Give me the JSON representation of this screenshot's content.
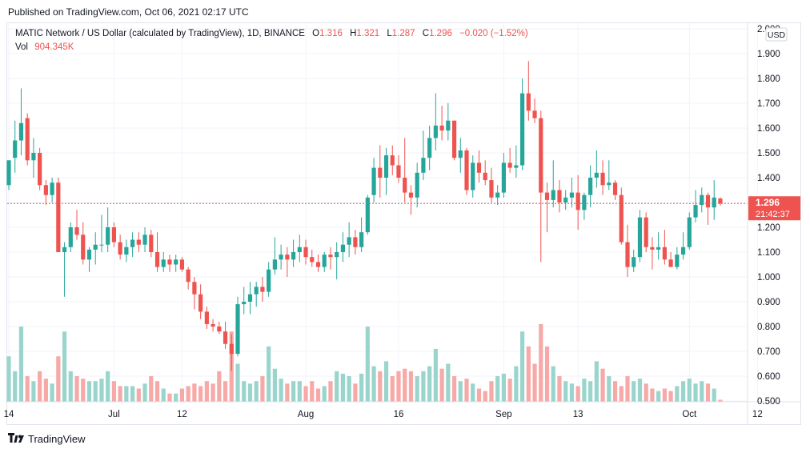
{
  "published": "Published on TradingView.com, Oct 06, 2021 02:17 UTC",
  "footer": {
    "logo_icon": "tradingview-logo-icon",
    "brand": "TradingView"
  },
  "colors": {
    "up": "#26a69a",
    "down": "#ef5350",
    "up_vol": "#9ad5cd",
    "down_vol": "#f7a9a7",
    "grid": "#f0f3fa",
    "axis_text": "#131722",
    "price_line": "#ef5350"
  },
  "chart_data": {
    "type": "candlestick",
    "legend": {
      "symbol": "MATIC Network / US Dollar (calculated by TradingView), 1D, BINANCE",
      "o_label": "O",
      "o_value": "1.316",
      "h_label": "H",
      "h_value": "1.321",
      "l_label": "L",
      "l_value": "1.287",
      "c_label": "C",
      "c_value": "1.296",
      "change": "−0.020 (−1.52%)",
      "vol_label": "Vol",
      "vol_value": "904.345K"
    },
    "currency": "USD",
    "last_price": "1.296",
    "countdown": "21:42:37",
    "ylim": [
      0.5,
      2.0
    ],
    "y_ticks": [
      "0.500",
      "0.600",
      "0.700",
      "0.800",
      "0.900",
      "1.000",
      "1.100",
      "1.200",
      "1.300",
      "1.400",
      "1.500",
      "1.600",
      "1.700",
      "1.800",
      "1.900",
      "2.000"
    ],
    "x_ticks": [
      {
        "label": "14",
        "index": 0
      },
      {
        "label": "Jul",
        "index": 17
      },
      {
        "label": "12",
        "index": 28
      },
      {
        "label": "Aug",
        "index": 48
      },
      {
        "label": "16",
        "index": 63
      },
      {
        "label": "Sep",
        "index": 80
      },
      {
        "label": "13",
        "index": 92
      },
      {
        "label": "Oct",
        "index": 110
      },
      {
        "label": "12",
        "index": 121
      }
    ],
    "candles": [
      {
        "o": 1.37,
        "h": 1.47,
        "l": 1.35,
        "c": 1.47,
        "v": 0.68
      },
      {
        "o": 1.48,
        "h": 1.63,
        "l": 1.42,
        "c": 1.55,
        "v": 0.62
      },
      {
        "o": 1.55,
        "h": 1.76,
        "l": 1.49,
        "c": 1.62,
        "v": 0.8
      },
      {
        "o": 1.64,
        "h": 1.66,
        "l": 1.45,
        "c": 1.47,
        "v": 0.6
      },
      {
        "o": 1.47,
        "h": 1.56,
        "l": 1.4,
        "c": 1.5,
        "v": 0.58
      },
      {
        "o": 1.5,
        "h": 1.52,
        "l": 1.35,
        "c": 1.37,
        "v": 0.62
      },
      {
        "o": 1.37,
        "h": 1.39,
        "l": 1.29,
        "c": 1.33,
        "v": 0.59
      },
      {
        "o": 1.33,
        "h": 1.4,
        "l": 1.3,
        "c": 1.38,
        "v": 0.57
      },
      {
        "o": 1.38,
        "h": 1.4,
        "l": 1.11,
        "c": 1.1,
        "v": 0.68
      },
      {
        "o": 1.1,
        "h": 1.14,
        "l": 0.92,
        "c": 1.12,
        "v": 0.78
      },
      {
        "o": 1.12,
        "h": 1.22,
        "l": 1.1,
        "c": 1.2,
        "v": 0.62
      },
      {
        "o": 1.2,
        "h": 1.27,
        "l": 1.15,
        "c": 1.17,
        "v": 0.6
      },
      {
        "o": 1.17,
        "h": 1.22,
        "l": 1.05,
        "c": 1.07,
        "v": 0.59
      },
      {
        "o": 1.07,
        "h": 1.12,
        "l": 1.02,
        "c": 1.11,
        "v": 0.58
      },
      {
        "o": 1.11,
        "h": 1.18,
        "l": 1.05,
        "c": 1.13,
        "v": 0.58
      },
      {
        "o": 1.13,
        "h": 1.25,
        "l": 1.1,
        "c": 1.13,
        "v": 0.59
      },
      {
        "o": 1.13,
        "h": 1.28,
        "l": 1.1,
        "c": 1.2,
        "v": 0.62
      },
      {
        "o": 1.2,
        "h": 1.22,
        "l": 1.12,
        "c": 1.14,
        "v": 0.58
      },
      {
        "o": 1.14,
        "h": 1.17,
        "l": 1.07,
        "c": 1.09,
        "v": 0.56
      },
      {
        "o": 1.09,
        "h": 1.15,
        "l": 1.06,
        "c": 1.12,
        "v": 0.56
      },
      {
        "o": 1.12,
        "h": 1.18,
        "l": 1.08,
        "c": 1.15,
        "v": 0.56
      },
      {
        "o": 1.15,
        "h": 1.18,
        "l": 1.1,
        "c": 1.13,
        "v": 0.55
      },
      {
        "o": 1.13,
        "h": 1.2,
        "l": 1.1,
        "c": 1.17,
        "v": 0.57
      },
      {
        "o": 1.17,
        "h": 1.19,
        "l": 1.08,
        "c": 1.1,
        "v": 0.6
      },
      {
        "o": 1.1,
        "h": 1.18,
        "l": 1.02,
        "c": 1.04,
        "v": 0.58
      },
      {
        "o": 1.04,
        "h": 1.1,
        "l": 1.02,
        "c": 1.07,
        "v": 0.55
      },
      {
        "o": 1.07,
        "h": 1.09,
        "l": 1.02,
        "c": 1.05,
        "v": 0.53
      },
      {
        "o": 1.05,
        "h": 1.09,
        "l": 1.02,
        "c": 1.07,
        "v": 0.53
      },
      {
        "o": 1.07,
        "h": 1.08,
        "l": 1.02,
        "c": 1.03,
        "v": 0.55
      },
      {
        "o": 1.03,
        "h": 1.04,
        "l": 0.95,
        "c": 0.98,
        "v": 0.56
      },
      {
        "o": 0.98,
        "h": 1.0,
        "l": 0.87,
        "c": 0.93,
        "v": 0.57
      },
      {
        "o": 0.93,
        "h": 0.97,
        "l": 0.83,
        "c": 0.86,
        "v": 0.56
      },
      {
        "o": 0.86,
        "h": 0.88,
        "l": 0.79,
        "c": 0.81,
        "v": 0.58
      },
      {
        "o": 0.81,
        "h": 0.83,
        "l": 0.78,
        "c": 0.8,
        "v": 0.57
      },
      {
        "o": 0.8,
        "h": 0.82,
        "l": 0.77,
        "c": 0.78,
        "v": 0.62
      },
      {
        "o": 0.78,
        "h": 0.82,
        "l": 0.71,
        "c": 0.73,
        "v": 0.58
      },
      {
        "o": 0.73,
        "h": 0.77,
        "l": 0.62,
        "c": 0.69,
        "v": 0.78
      },
      {
        "o": 0.69,
        "h": 0.92,
        "l": 0.68,
        "c": 0.89,
        "v": 0.65
      },
      {
        "o": 0.89,
        "h": 0.96,
        "l": 0.85,
        "c": 0.9,
        "v": 0.58
      },
      {
        "o": 0.9,
        "h": 0.98,
        "l": 0.85,
        "c": 0.93,
        "v": 0.57
      },
      {
        "o": 0.93,
        "h": 0.98,
        "l": 0.88,
        "c": 0.96,
        "v": 0.58
      },
      {
        "o": 0.96,
        "h": 1.0,
        "l": 0.9,
        "c": 0.94,
        "v": 0.6
      },
      {
        "o": 0.94,
        "h": 1.06,
        "l": 0.92,
        "c": 1.03,
        "v": 0.72
      },
      {
        "o": 1.03,
        "h": 1.16,
        "l": 1.01,
        "c": 1.07,
        "v": 0.63
      },
      {
        "o": 1.07,
        "h": 1.13,
        "l": 1.03,
        "c": 1.09,
        "v": 0.59
      },
      {
        "o": 1.09,
        "h": 1.12,
        "l": 1.0,
        "c": 1.07,
        "v": 0.57
      },
      {
        "o": 1.07,
        "h": 1.15,
        "l": 1.04,
        "c": 1.1,
        "v": 0.58
      },
      {
        "o": 1.1,
        "h": 1.17,
        "l": 1.06,
        "c": 1.12,
        "v": 0.58
      },
      {
        "o": 1.12,
        "h": 1.15,
        "l": 1.05,
        "c": 1.08,
        "v": 0.56
      },
      {
        "o": 1.08,
        "h": 1.11,
        "l": 1.04,
        "c": 1.06,
        "v": 0.58
      },
      {
        "o": 1.06,
        "h": 1.09,
        "l": 1.02,
        "c": 1.04,
        "v": 0.55
      },
      {
        "o": 1.04,
        "h": 1.1,
        "l": 1.02,
        "c": 1.09,
        "v": 0.56
      },
      {
        "o": 1.09,
        "h": 1.12,
        "l": 1.03,
        "c": 1.08,
        "v": 0.58
      },
      {
        "o": 1.08,
        "h": 1.14,
        "l": 0.99,
        "c": 1.1,
        "v": 0.62
      },
      {
        "o": 1.1,
        "h": 1.18,
        "l": 1.06,
        "c": 1.13,
        "v": 0.61
      },
      {
        "o": 1.13,
        "h": 1.22,
        "l": 1.08,
        "c": 1.16,
        "v": 0.6
      },
      {
        "o": 1.16,
        "h": 1.19,
        "l": 1.09,
        "c": 1.12,
        "v": 0.57
      },
      {
        "o": 1.12,
        "h": 1.24,
        "l": 1.1,
        "c": 1.18,
        "v": 0.61
      },
      {
        "o": 1.18,
        "h": 1.33,
        "l": 1.17,
        "c": 1.32,
        "v": 0.8
      },
      {
        "o": 1.33,
        "h": 1.48,
        "l": 1.3,
        "c": 1.44,
        "v": 0.64
      },
      {
        "o": 1.44,
        "h": 1.53,
        "l": 1.32,
        "c": 1.4,
        "v": 0.62
      },
      {
        "o": 1.4,
        "h": 1.52,
        "l": 1.33,
        "c": 1.49,
        "v": 0.66
      },
      {
        "o": 1.49,
        "h": 1.53,
        "l": 1.41,
        "c": 1.45,
        "v": 0.6
      },
      {
        "o": 1.45,
        "h": 1.49,
        "l": 1.38,
        "c": 1.4,
        "v": 0.62
      },
      {
        "o": 1.4,
        "h": 1.56,
        "l": 1.3,
        "c": 1.34,
        "v": 0.63
      },
      {
        "o": 1.34,
        "h": 1.37,
        "l": 1.25,
        "c": 1.32,
        "v": 0.62
      },
      {
        "o": 1.32,
        "h": 1.46,
        "l": 1.28,
        "c": 1.42,
        "v": 0.6
      },
      {
        "o": 1.42,
        "h": 1.59,
        "l": 1.39,
        "c": 1.48,
        "v": 0.62
      },
      {
        "o": 1.48,
        "h": 1.61,
        "l": 1.43,
        "c": 1.56,
        "v": 0.64
      },
      {
        "o": 1.56,
        "h": 1.74,
        "l": 1.51,
        "c": 1.61,
        "v": 0.71
      },
      {
        "o": 1.61,
        "h": 1.69,
        "l": 1.55,
        "c": 1.59,
        "v": 0.63
      },
      {
        "o": 1.59,
        "h": 1.7,
        "l": 1.55,
        "c": 1.63,
        "v": 0.65
      },
      {
        "o": 1.63,
        "h": 1.63,
        "l": 1.47,
        "c": 1.48,
        "v": 0.6
      },
      {
        "o": 1.48,
        "h": 1.56,
        "l": 1.42,
        "c": 1.51,
        "v": 0.58
      },
      {
        "o": 1.51,
        "h": 1.52,
        "l": 1.33,
        "c": 1.35,
        "v": 0.59
      },
      {
        "o": 1.35,
        "h": 1.49,
        "l": 1.32,
        "c": 1.46,
        "v": 0.57
      },
      {
        "o": 1.46,
        "h": 1.51,
        "l": 1.38,
        "c": 1.42,
        "v": 0.55
      },
      {
        "o": 1.42,
        "h": 1.47,
        "l": 1.37,
        "c": 1.39,
        "v": 0.54
      },
      {
        "o": 1.39,
        "h": 1.44,
        "l": 1.3,
        "c": 1.32,
        "v": 0.58
      },
      {
        "o": 1.32,
        "h": 1.37,
        "l": 1.29,
        "c": 1.34,
        "v": 0.6
      },
      {
        "o": 1.34,
        "h": 1.5,
        "l": 1.32,
        "c": 1.46,
        "v": 0.61
      },
      {
        "o": 1.46,
        "h": 1.52,
        "l": 1.42,
        "c": 1.44,
        "v": 0.59
      },
      {
        "o": 1.44,
        "h": 1.53,
        "l": 1.4,
        "c": 1.45,
        "v": 0.64
      },
      {
        "o": 1.45,
        "h": 1.8,
        "l": 1.43,
        "c": 1.74,
        "v": 0.78
      },
      {
        "o": 1.74,
        "h": 1.87,
        "l": 1.63,
        "c": 1.67,
        "v": 0.72
      },
      {
        "o": 1.67,
        "h": 1.72,
        "l": 1.62,
        "c": 1.64,
        "v": 0.65
      },
      {
        "o": 1.64,
        "h": 1.67,
        "l": 1.06,
        "c": 1.34,
        "v": 0.81
      },
      {
        "o": 1.34,
        "h": 1.38,
        "l": 1.18,
        "c": 1.31,
        "v": 0.72
      },
      {
        "o": 1.31,
        "h": 1.47,
        "l": 1.28,
        "c": 1.35,
        "v": 0.64
      },
      {
        "o": 1.35,
        "h": 1.39,
        "l": 1.26,
        "c": 1.3,
        "v": 0.6
      },
      {
        "o": 1.3,
        "h": 1.35,
        "l": 1.27,
        "c": 1.32,
        "v": 0.58
      },
      {
        "o": 1.32,
        "h": 1.4,
        "l": 1.28,
        "c": 1.34,
        "v": 0.57
      },
      {
        "o": 1.34,
        "h": 1.41,
        "l": 1.19,
        "c": 1.27,
        "v": 0.56
      },
      {
        "o": 1.27,
        "h": 1.34,
        "l": 1.23,
        "c": 1.33,
        "v": 0.59
      },
      {
        "o": 1.33,
        "h": 1.45,
        "l": 1.28,
        "c": 1.4,
        "v": 0.58
      },
      {
        "o": 1.4,
        "h": 1.51,
        "l": 1.36,
        "c": 1.42,
        "v": 0.66
      },
      {
        "o": 1.42,
        "h": 1.47,
        "l": 1.33,
        "c": 1.37,
        "v": 0.63
      },
      {
        "o": 1.37,
        "h": 1.47,
        "l": 1.35,
        "c": 1.38,
        "v": 0.6
      },
      {
        "o": 1.38,
        "h": 1.39,
        "l": 1.31,
        "c": 1.33,
        "v": 0.58
      },
      {
        "o": 1.33,
        "h": 1.36,
        "l": 1.13,
        "c": 1.14,
        "v": 0.56
      },
      {
        "o": 1.14,
        "h": 1.21,
        "l": 1.0,
        "c": 1.04,
        "v": 0.6
      },
      {
        "o": 1.04,
        "h": 1.11,
        "l": 1.02,
        "c": 1.08,
        "v": 0.58
      },
      {
        "o": 1.08,
        "h": 1.27,
        "l": 1.06,
        "c": 1.24,
        "v": 0.59
      },
      {
        "o": 1.24,
        "h": 1.26,
        "l": 1.1,
        "c": 1.12,
        "v": 0.57
      },
      {
        "o": 1.12,
        "h": 1.16,
        "l": 1.03,
        "c": 1.11,
        "v": 0.55
      },
      {
        "o": 1.11,
        "h": 1.18,
        "l": 1.07,
        "c": 1.12,
        "v": 0.54
      },
      {
        "o": 1.12,
        "h": 1.19,
        "l": 1.05,
        "c": 1.07,
        "v": 0.55
      },
      {
        "o": 1.07,
        "h": 1.1,
        "l": 1.04,
        "c": 1.04,
        "v": 0.54
      },
      {
        "o": 1.04,
        "h": 1.12,
        "l": 1.03,
        "c": 1.09,
        "v": 0.56
      },
      {
        "o": 1.09,
        "h": 1.18,
        "l": 1.07,
        "c": 1.12,
        "v": 0.58
      },
      {
        "o": 1.12,
        "h": 1.26,
        "l": 1.11,
        "c": 1.24,
        "v": 0.59
      },
      {
        "o": 1.24,
        "h": 1.35,
        "l": 1.22,
        "c": 1.29,
        "v": 0.57
      },
      {
        "o": 1.29,
        "h": 1.36,
        "l": 1.26,
        "c": 1.33,
        "v": 0.58
      },
      {
        "o": 1.33,
        "h": 1.34,
        "l": 1.21,
        "c": 1.28,
        "v": 0.57
      },
      {
        "o": 1.28,
        "h": 1.39,
        "l": 1.23,
        "c": 1.32,
        "v": 0.55
      },
      {
        "o": 1.316,
        "h": 1.321,
        "l": 1.287,
        "c": 1.296,
        "v": 0.505
      }
    ]
  }
}
